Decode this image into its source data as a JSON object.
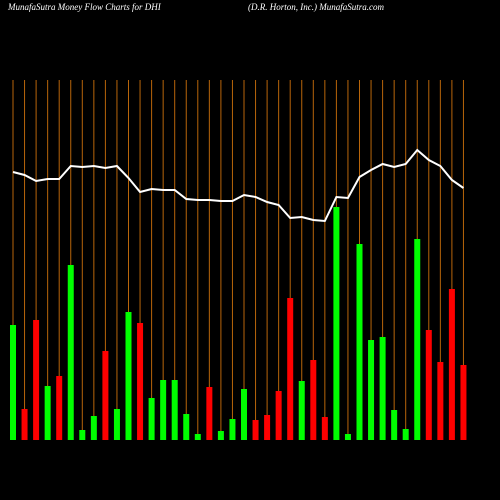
{
  "chart_data": {
    "type": "bar",
    "title": "MunafaSutra  Money Flow  Charts for DHI",
    "subtitle": "(D.R. Horton,  Inc.) MunafaSutra.com",
    "categories": [
      null,
      null,
      null,
      null,
      null,
      null,
      null,
      null,
      null,
      null,
      null,
      null,
      null,
      null,
      null,
      null,
      null,
      null,
      null,
      null,
      null,
      null,
      null,
      null,
      null,
      null,
      null,
      null,
      null,
      null,
      null,
      null,
      null,
      null,
      null,
      null,
      null,
      null,
      null,
      null
    ],
    "values": [
      115,
      31,
      120,
      54,
      64,
      175,
      10,
      24,
      89,
      31,
      128,
      117,
      42,
      60,
      60,
      26,
      6,
      53,
      9,
      21,
      51,
      20,
      25,
      49,
      142,
      59,
      80,
      23,
      233,
      6,
      196,
      100,
      103,
      30,
      11,
      201,
      110,
      78,
      151,
      75
    ],
    "colors": [
      "#00ff00",
      "#ff0000",
      "#ff0000",
      "#00ff00",
      "#ff0000",
      "#00ff00",
      "#00ff00",
      "#00ff00",
      "#ff0000",
      "#00ff00",
      "#00ff00",
      "#ff0000",
      "#00ff00",
      "#00ff00",
      "#00ff00",
      "#00ff00",
      "#00ff00",
      "#ff0000",
      "#00ff00",
      "#00ff00",
      "#00ff00",
      "#ff0000",
      "#ff0000",
      "#ff0000",
      "#ff0000",
      "#00ff00",
      "#ff0000",
      "#ff0000",
      "#00ff00",
      "#00ff00",
      "#00ff00",
      "#00ff00",
      "#00ff00",
      "#00ff00",
      "#00ff00",
      "#00ff00",
      "#ff0000",
      "#ff0000",
      "#ff0000",
      "#ff0000"
    ],
    "line": {
      "color": "#ffffff",
      "values": [
        268,
        265,
        259,
        261,
        261,
        274,
        273,
        274,
        272,
        274,
        262,
        248,
        251,
        250,
        250,
        241,
        240,
        240,
        239,
        239,
        245,
        243,
        238,
        235,
        222,
        223,
        220,
        219,
        243,
        242,
        263,
        270,
        276,
        273,
        276,
        290,
        280,
        274,
        260,
        252
      ]
    },
    "ylim": [
      0,
      440
    ],
    "grid_color": "#b8650a"
  }
}
